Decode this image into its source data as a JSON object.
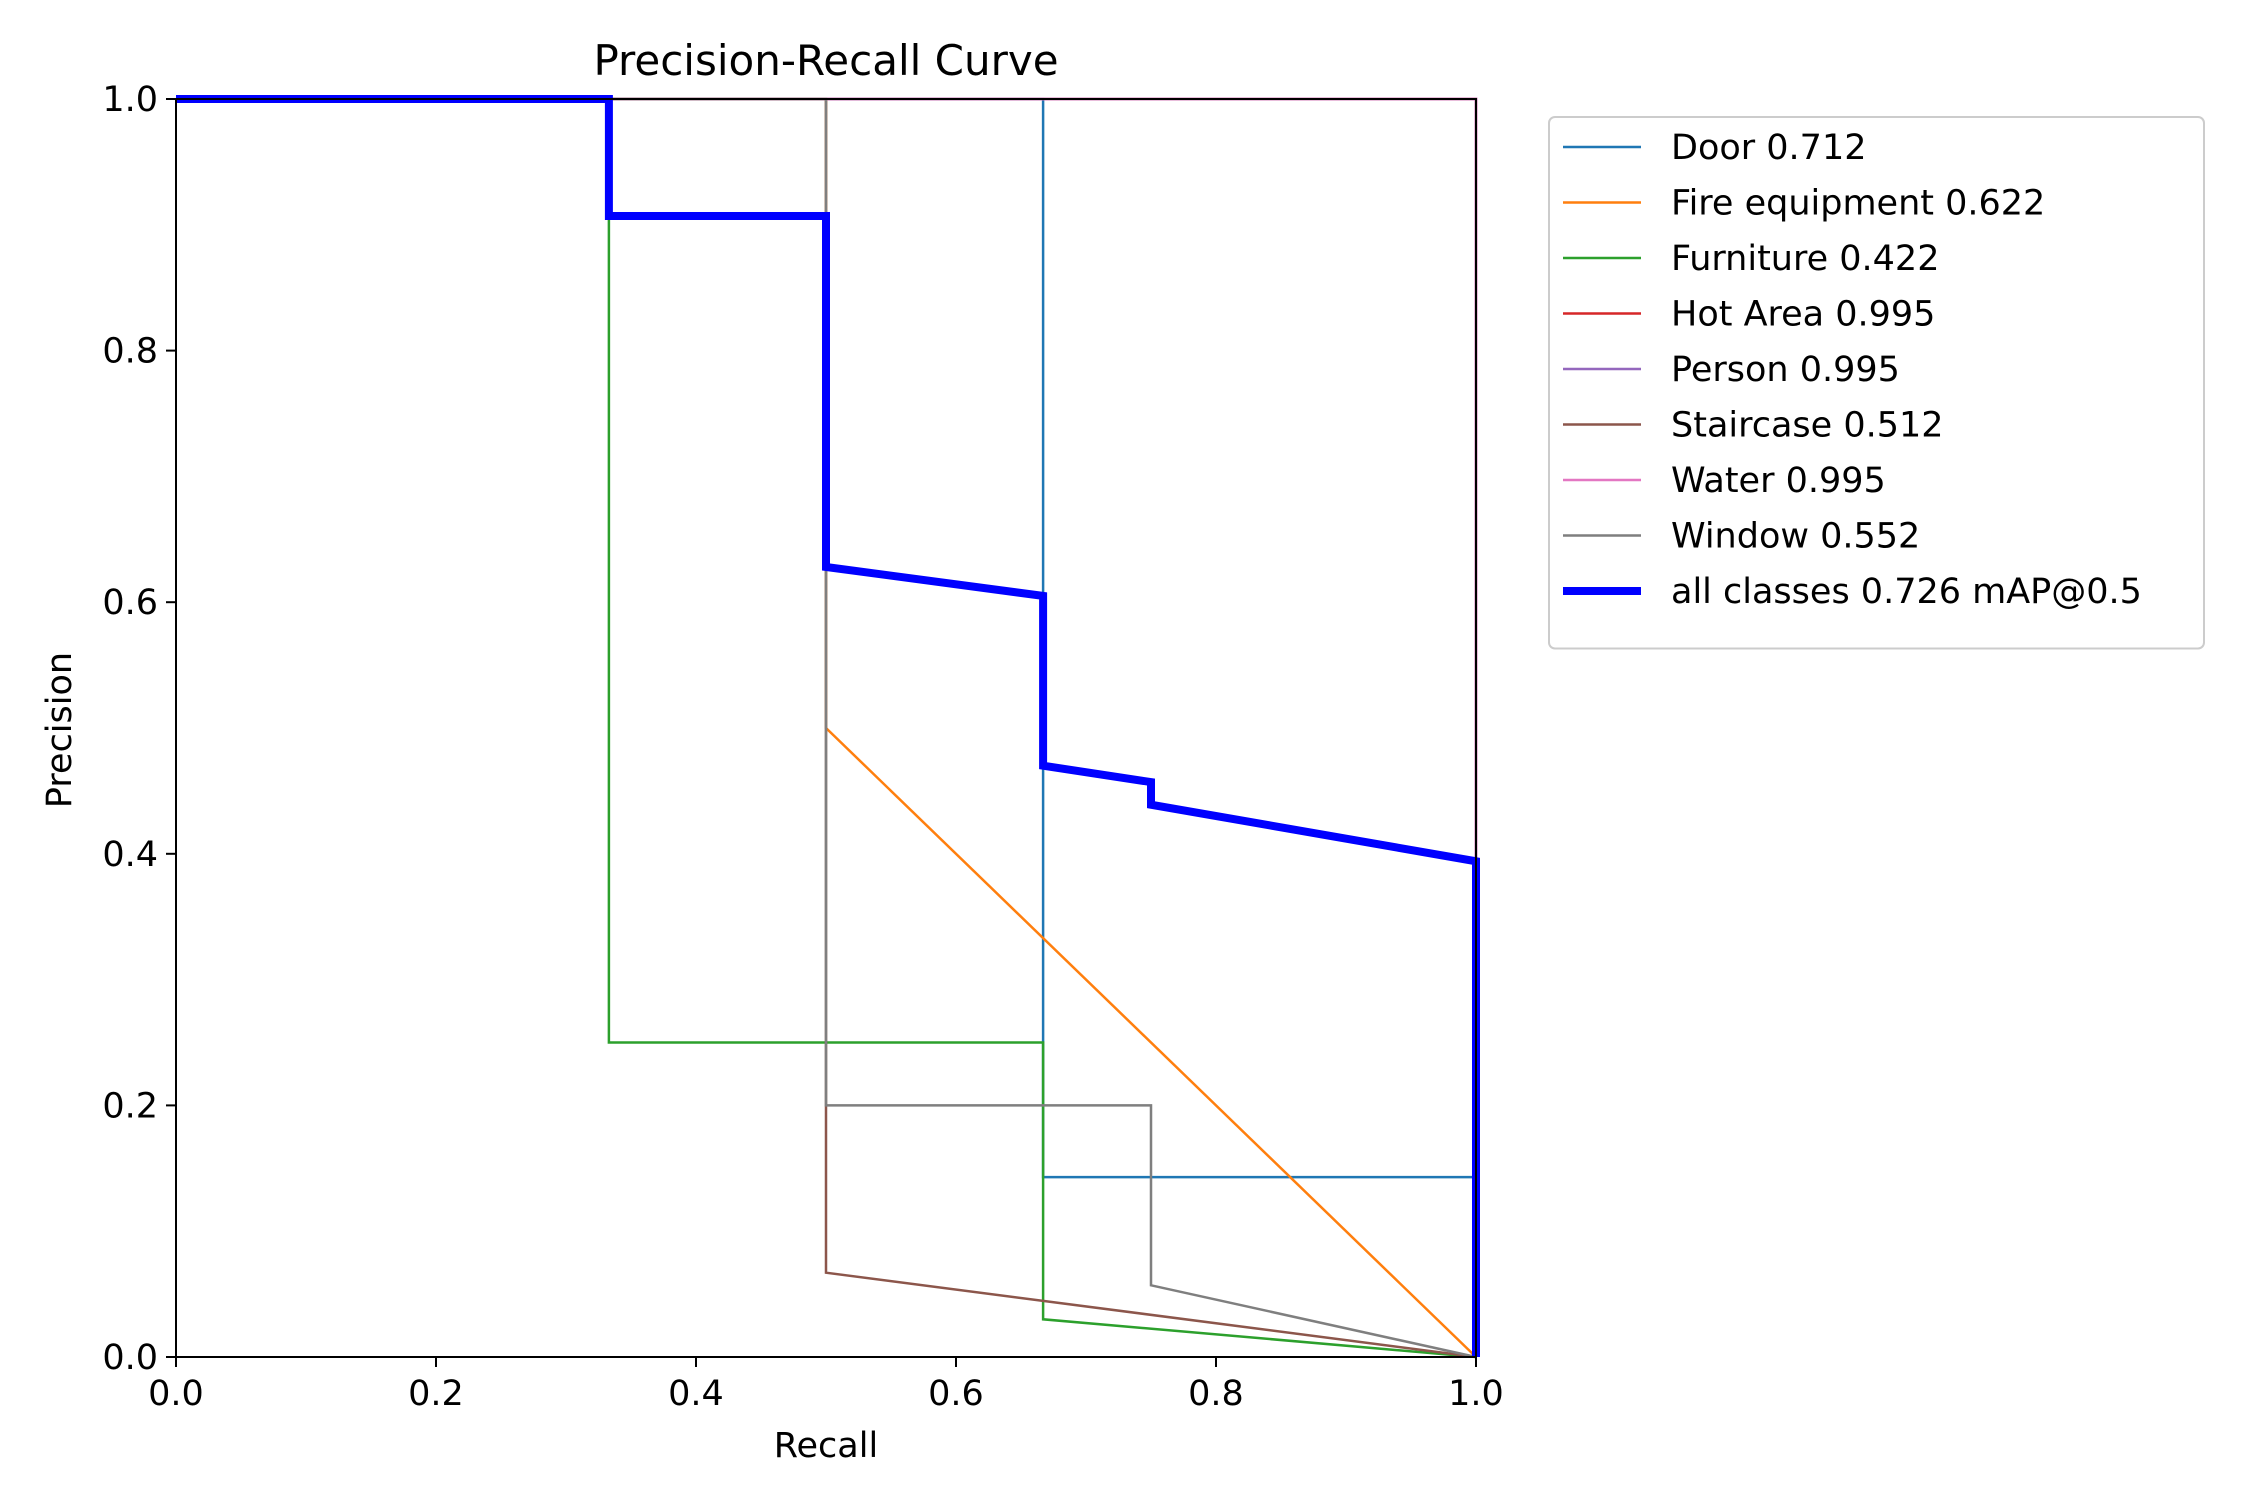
{
  "chart_data": {
    "type": "line",
    "title": "Precision-Recall Curve",
    "xlabel": "Recall",
    "ylabel": "Precision",
    "xlim": [
      0,
      1
    ],
    "ylim": [
      0,
      1
    ],
    "xticks": [
      "0.0",
      "0.2",
      "0.4",
      "0.6",
      "0.8",
      "1.0"
    ],
    "yticks": [
      "0.0",
      "0.2",
      "0.4",
      "0.6",
      "0.8",
      "1.0"
    ],
    "grid": false,
    "legend_position": "outside upper right",
    "series": [
      {
        "name": "Door 0.712",
        "color": "#1f77b4",
        "width": "thin",
        "points": [
          [
            0,
            1
          ],
          [
            0.667,
            1
          ],
          [
            0.667,
            0.143
          ],
          [
            1,
            0.143
          ],
          [
            1,
            0
          ]
        ]
      },
      {
        "name": "Fire equipment 0.622",
        "color": "#ff7f0e",
        "width": "thin",
        "points": [
          [
            0,
            1
          ],
          [
            0.5,
            1
          ],
          [
            0.5,
            0.5
          ],
          [
            1,
            0
          ]
        ]
      },
      {
        "name": "Furniture 0.422",
        "color": "#2ca02c",
        "width": "thin",
        "points": [
          [
            0,
            1
          ],
          [
            0.333,
            1
          ],
          [
            0.333,
            0.25
          ],
          [
            0.667,
            0.25
          ],
          [
            0.667,
            0.03
          ],
          [
            1,
            0
          ]
        ]
      },
      {
        "name": "Hot Area 0.995",
        "color": "#d62728",
        "width": "thin",
        "points": [
          [
            0,
            1
          ],
          [
            1,
            1
          ],
          [
            1,
            0
          ]
        ]
      },
      {
        "name": "Person 0.995",
        "color": "#9467bd",
        "width": "thin",
        "points": [
          [
            0,
            1
          ],
          [
            1,
            1
          ],
          [
            1,
            0
          ]
        ]
      },
      {
        "name": "Staircase 0.512",
        "color": "#8c564b",
        "width": "thin",
        "points": [
          [
            0,
            1
          ],
          [
            0.5,
            1
          ],
          [
            0.5,
            0.067
          ],
          [
            1,
            0
          ]
        ]
      },
      {
        "name": "Water 0.995",
        "color": "#e377c2",
        "width": "thin",
        "points": [
          [
            0,
            1
          ],
          [
            1,
            1
          ],
          [
            1,
            0
          ]
        ]
      },
      {
        "name": "Window 0.552",
        "color": "#7f7f7f",
        "width": "thin",
        "points": [
          [
            0,
            1
          ],
          [
            0.5,
            1
          ],
          [
            0.5,
            0.2
          ],
          [
            0.75,
            0.2
          ],
          [
            0.75,
            0.057
          ],
          [
            1,
            0
          ]
        ]
      },
      {
        "name": "all classes 0.726 mAP@0.5",
        "color": "#0000ff",
        "width": "thick",
        "points": [
          [
            0,
            1
          ],
          [
            0.333,
            1
          ],
          [
            0.333,
            0.907
          ],
          [
            0.5,
            0.907
          ],
          [
            0.5,
            0.628
          ],
          [
            0.667,
            0.605
          ],
          [
            0.667,
            0.47
          ],
          [
            0.75,
            0.457
          ],
          [
            0.75,
            0.439
          ],
          [
            1,
            0.394
          ],
          [
            1,
            0
          ]
        ]
      }
    ]
  }
}
